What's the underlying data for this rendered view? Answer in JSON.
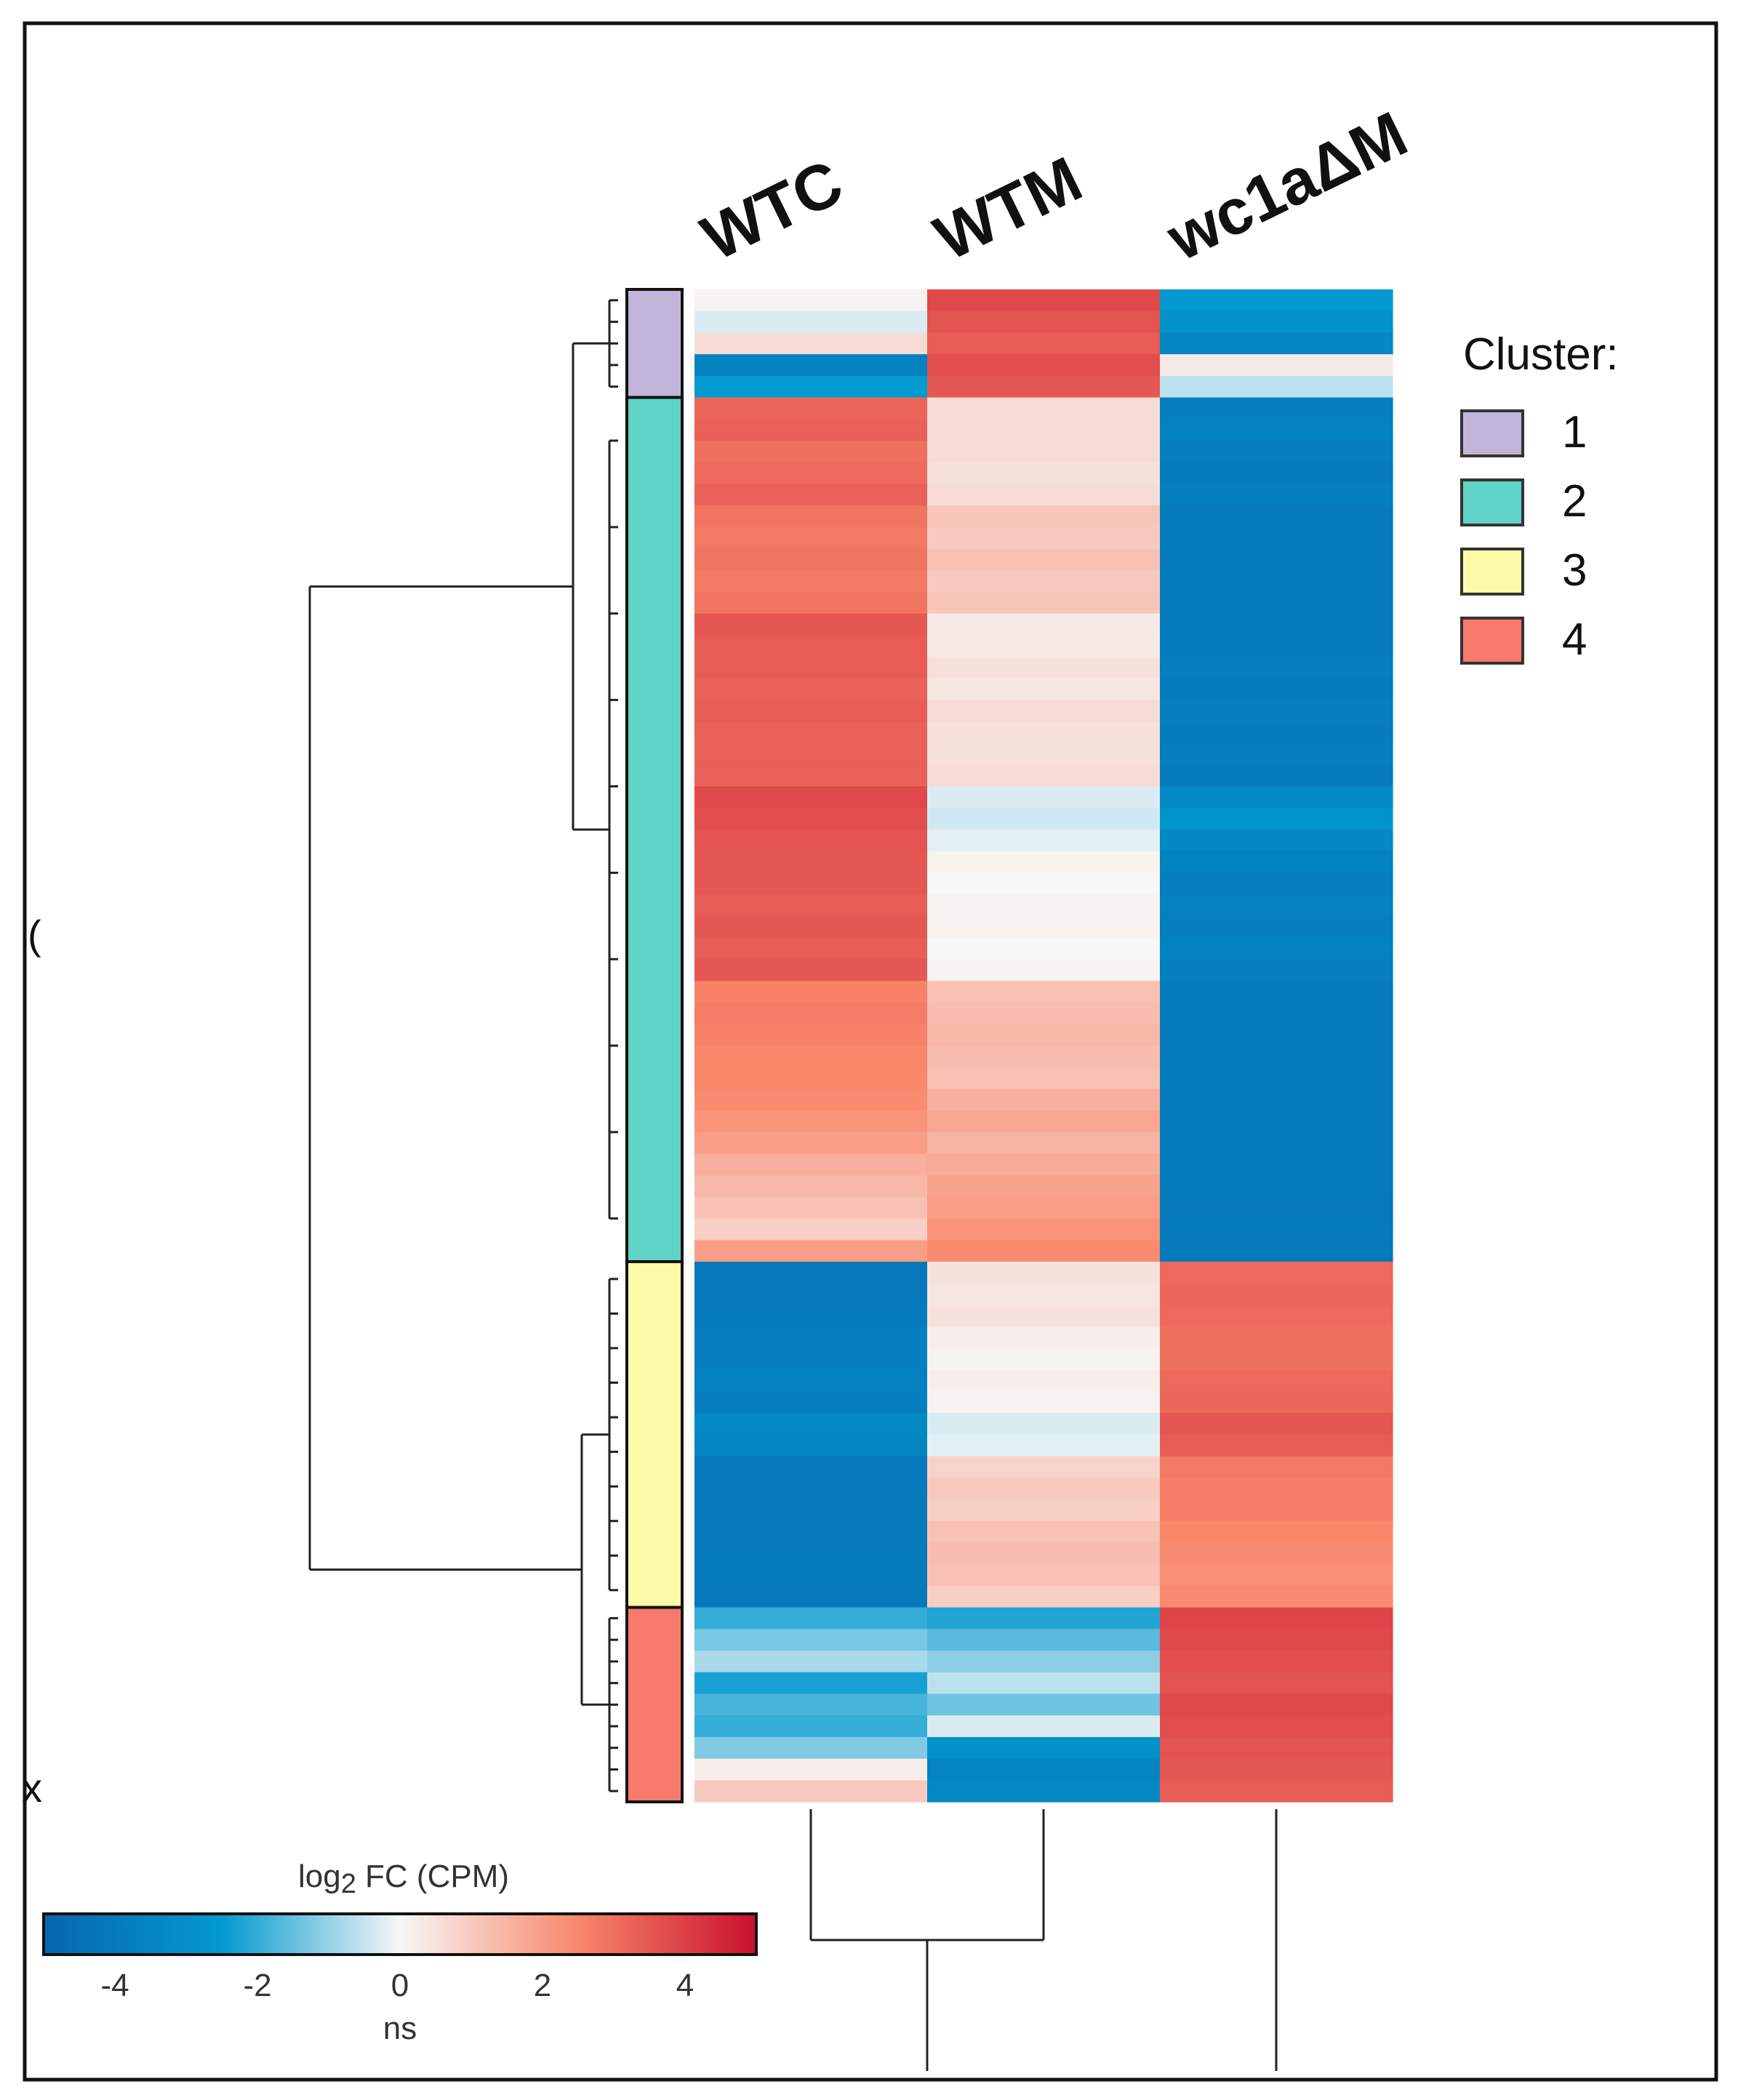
{
  "chart_data": {
    "type": "heatmap",
    "columns": [
      "WTC",
      "WTM",
      "wc1aΔM"
    ],
    "legend_title": "Cluster:",
    "clusters": [
      {
        "label": "1",
        "color": "#c2b5da"
      },
      {
        "label": "2",
        "color": "#5fd3c6"
      },
      {
        "label": "3",
        "color": "#fdfbaa"
      },
      {
        "label": "4",
        "color": "#f77a6d"
      }
    ],
    "colorbar": {
      "title_main": "log",
      "title_sub": "2",
      "title_rest": " FC (CPM)",
      "ticks": [
        -4,
        -2,
        0,
        2,
        4
      ],
      "range": [
        -5,
        5
      ],
      "caption": "ns",
      "colors": [
        "#0666ad",
        "#039ad0",
        "#f7f7f7",
        "#f9876a",
        "#c8102e"
      ]
    },
    "blocks": [
      {
        "cluster": "1",
        "size": 5,
        "values": [
          [
            0.1,
            3.8,
            -2.6
          ],
          [
            -0.3,
            3.6,
            -2.9
          ],
          [
            0.6,
            3.4,
            -3.4
          ],
          [
            -3.7,
            3.7,
            0.3
          ],
          [
            -2.5,
            3.5,
            -0.6
          ]
        ]
      },
      {
        "cluster": "2",
        "size": 40,
        "values": [
          [
            3.2,
            0.6,
            -3.8
          ],
          [
            3.3,
            0.6,
            -3.7
          ],
          [
            3.0,
            0.6,
            -3.8
          ],
          [
            3.1,
            0.5,
            -3.9
          ],
          [
            3.3,
            0.6,
            -3.8
          ],
          [
            2.9,
            1.1,
            -4.0
          ],
          [
            2.8,
            1.0,
            -4.0
          ],
          [
            2.9,
            1.2,
            -4.0
          ],
          [
            2.8,
            1.0,
            -3.9
          ],
          [
            2.9,
            1.1,
            -4.0
          ],
          [
            3.5,
            0.3,
            -3.9
          ],
          [
            3.4,
            0.3,
            -3.9
          ],
          [
            3.4,
            0.5,
            -3.8
          ],
          [
            3.3,
            0.4,
            -3.9
          ],
          [
            3.4,
            0.6,
            -3.8
          ],
          [
            3.3,
            0.5,
            -3.9
          ],
          [
            3.3,
            0.5,
            -3.8
          ],
          [
            3.3,
            0.6,
            -3.9
          ],
          [
            3.8,
            -0.3,
            -3.2
          ],
          [
            3.7,
            -0.4,
            -2.8
          ],
          [
            3.6,
            -0.2,
            -3.4
          ],
          [
            3.5,
            0.1,
            -3.7
          ],
          [
            3.5,
            0.0,
            -3.8
          ],
          [
            3.4,
            0.1,
            -3.7
          ],
          [
            3.5,
            0.1,
            -3.8
          ],
          [
            3.4,
            0.0,
            -3.7
          ],
          [
            3.5,
            0.1,
            -3.8
          ],
          [
            2.6,
            1.2,
            -4.0
          ],
          [
            2.7,
            1.3,
            -3.9
          ],
          [
            2.6,
            1.4,
            -4.0
          ],
          [
            2.5,
            1.3,
            -3.9
          ],
          [
            2.5,
            1.2,
            -3.9
          ],
          [
            2.4,
            1.6,
            -4.0
          ],
          [
            2.2,
            1.8,
            -4.0
          ],
          [
            2.0,
            1.5,
            -4.0
          ],
          [
            1.6,
            1.7,
            -4.0
          ],
          [
            1.4,
            1.9,
            -4.0
          ],
          [
            1.2,
            2.0,
            -4.1
          ],
          [
            0.9,
            2.2,
            -4.0
          ],
          [
            2.0,
            2.4,
            -4.1
          ]
        ]
      },
      {
        "cluster": "3",
        "size": 16,
        "values": [
          [
            -4.1,
            0.5,
            3.1
          ],
          [
            -4.1,
            0.4,
            3.2
          ],
          [
            -4.0,
            0.5,
            3.1
          ],
          [
            -3.8,
            0.2,
            3.0
          ],
          [
            -3.8,
            0.1,
            3.0
          ],
          [
            -3.7,
            0.2,
            3.1
          ],
          [
            -3.8,
            0.1,
            3.2
          ],
          [
            -3.3,
            -0.3,
            3.5
          ],
          [
            -3.5,
            -0.2,
            3.4
          ],
          [
            -4.1,
            0.8,
            2.8
          ],
          [
            -4.1,
            1.0,
            2.7
          ],
          [
            -4.1,
            0.9,
            2.7
          ],
          [
            -4.1,
            1.2,
            2.5
          ],
          [
            -4.0,
            1.3,
            2.4
          ],
          [
            -4.0,
            1.2,
            2.3
          ],
          [
            -4.1,
            0.9,
            2.4
          ]
        ]
      },
      {
        "cluster": "4",
        "size": 9,
        "values": [
          [
            -2.0,
            -2.2,
            3.9
          ],
          [
            -1.3,
            -1.6,
            3.8
          ],
          [
            -0.8,
            -1.1,
            3.7
          ],
          [
            -2.3,
            -0.6,
            3.6
          ],
          [
            -1.8,
            -1.4,
            3.8
          ],
          [
            -2.0,
            -0.3,
            3.7
          ],
          [
            -1.2,
            -3.0,
            3.6
          ],
          [
            0.2,
            -3.6,
            3.5
          ],
          [
            1.0,
            -3.3,
            3.4
          ]
        ]
      }
    ]
  }
}
